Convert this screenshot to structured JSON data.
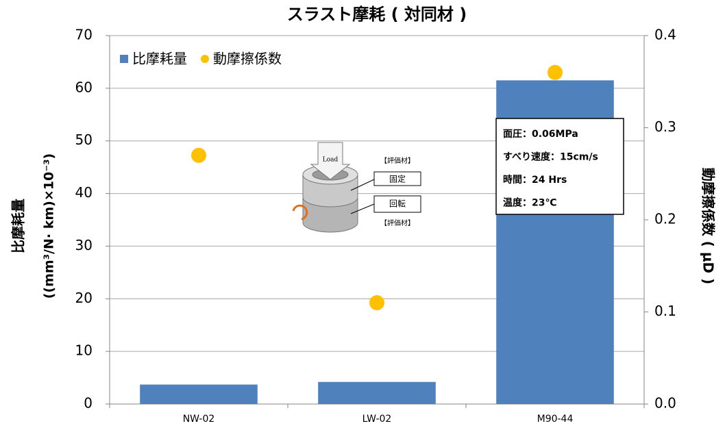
{
  "chart_data": {
    "type": "bar_scatter",
    "title": "スラスト摩耗 ( 対同材 )",
    "ylabel": [
      "比摩耗量",
      "((mm³/N· km)×10⁻³)"
    ],
    "y2label": "動摩擦係数 ( μD )",
    "categories": [
      "NW-02",
      "LW-02",
      "M90-44"
    ],
    "series": [
      {
        "name": "比摩耗量",
        "kind": "bar",
        "color": "#4f81bd",
        "values": [
          3.7,
          4.2,
          61.5
        ]
      },
      {
        "name": "動摩擦係数",
        "kind": "scatter",
        "axis": "y2",
        "color": "#ffc000",
        "values": [
          0.27,
          0.11,
          0.36
        ]
      }
    ],
    "ylim": [
      0,
      70
    ],
    "yticks": [
      0,
      10,
      20,
      30,
      40,
      50,
      60,
      70
    ],
    "y2lim": [
      0,
      0.4
    ],
    "y2ticks": [
      {
        "value": 0,
        "label": "0.0"
      },
      0.1,
      0.2,
      0.3,
      0.4
    ],
    "grid": true,
    "legend": "top-left",
    "annotations": [
      "面圧：0.06MPa",
      "すべり速度：15cm/s",
      "時間：24 Hrs",
      "温度：23℃"
    ],
    "diagram_labels": [
      "Load",
      "【評価材】",
      "固定",
      "回転",
      "【評価材】"
    ]
  }
}
